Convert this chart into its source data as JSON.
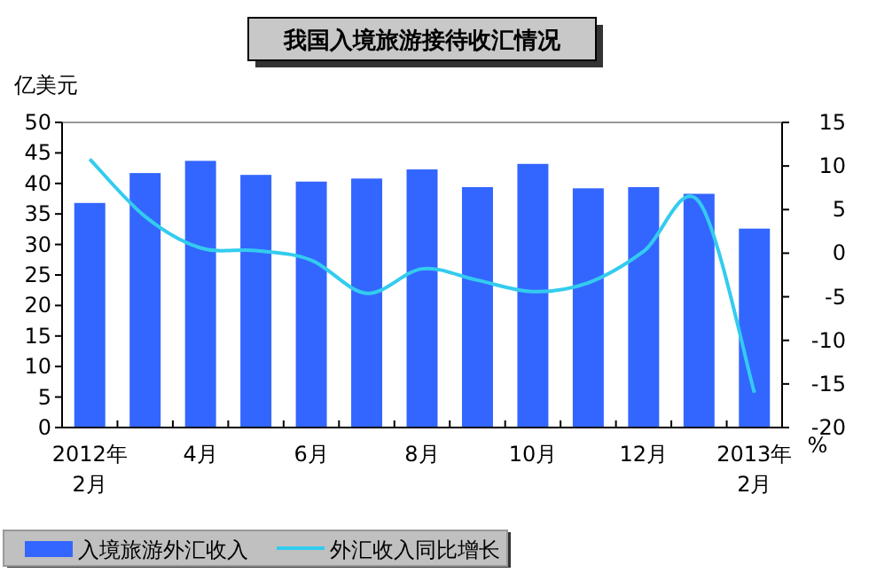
{
  "chart_data": {
    "type": "bar",
    "title": "我国入境旅游接待收汇情况",
    "ylabel": "亿美元",
    "y2label": "%",
    "categories": [
      "2012年\n2月",
      null,
      "4月",
      null,
      "6月",
      null,
      "8月",
      null,
      "10月",
      null,
      "12月",
      null,
      "2013年\n2月"
    ],
    "series": [
      {
        "name": "入境旅游外汇收入",
        "color": "#3366ff",
        "values": [
          36.8,
          41.7,
          43.7,
          41.4,
          40.3,
          40.8,
          42.3,
          39.4,
          43.2,
          39.2,
          39.4,
          38.3,
          32.6
        ]
      },
      {
        "name": "外汇收入同比增长",
        "type": "line",
        "axis": "y2",
        "color": "#33ccee",
        "values": [
          10.8,
          4.2,
          0.6,
          0.3,
          -0.8,
          -4.6,
          -1.8,
          -3.1,
          -4.4,
          -3.4,
          0.2,
          5.9,
          -16.0
        ]
      }
    ],
    "ylim": [
      0,
      50
    ],
    "yticks": [
      0,
      5,
      10,
      15,
      20,
      25,
      30,
      35,
      40,
      45,
      50
    ],
    "y2lim": [
      -20,
      15
    ],
    "y2ticks": [
      15,
      10,
      5,
      0,
      -5,
      -10,
      -15,
      -20
    ],
    "grid": false,
    "legend": "bottom"
  }
}
